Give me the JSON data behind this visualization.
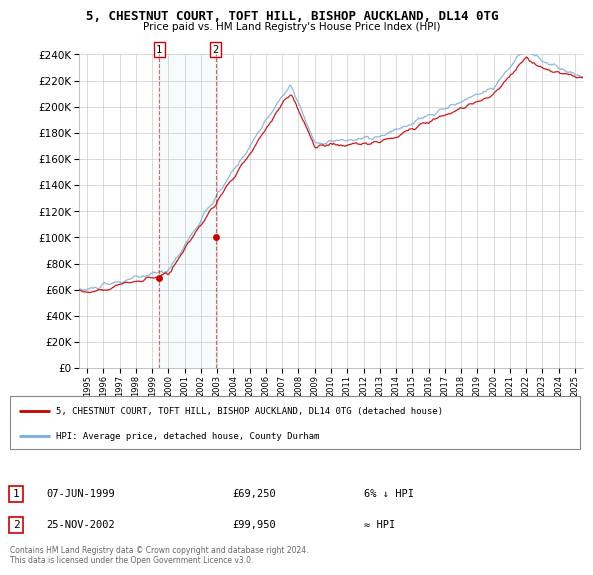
{
  "title": "5, CHESTNUT COURT, TOFT HILL, BISHOP AUCKLAND, DL14 0TG",
  "subtitle": "Price paid vs. HM Land Registry's House Price Index (HPI)",
  "legend_line1": "5, CHESTNUT COURT, TOFT HILL, BISHOP AUCKLAND, DL14 0TG (detached house)",
  "legend_line2": "HPI: Average price, detached house, County Durham",
  "annotation1_date": "07-JUN-1999",
  "annotation1_price": "£69,250",
  "annotation1_hpi": "6% ↓ HPI",
  "annotation2_date": "25-NOV-2002",
  "annotation2_price": "£99,950",
  "annotation2_hpi": "≈ HPI",
  "footer": "Contains HM Land Registry data © Crown copyright and database right 2024.\nThis data is licensed under the Open Government Licence v3.0.",
  "ylim": [
    0,
    240000
  ],
  "yticks": [
    0,
    20000,
    40000,
    60000,
    80000,
    100000,
    120000,
    140000,
    160000,
    180000,
    200000,
    220000,
    240000
  ],
  "sale1_x": 1999.44,
  "sale1_y": 69250,
  "sale2_x": 2002.9,
  "sale2_y": 99950,
  "hpi_color": "#7aaddc",
  "price_color": "#cc0000",
  "vline_color": "#cc0000",
  "xlim_left": 1994.5,
  "xlim_right": 2025.5,
  "xtick_years": [
    1995,
    1996,
    1997,
    1998,
    1999,
    2000,
    2001,
    2002,
    2003,
    2004,
    2005,
    2006,
    2007,
    2008,
    2009,
    2010,
    2011,
    2012,
    2013,
    2014,
    2015,
    2016,
    2017,
    2018,
    2019,
    2020,
    2021,
    2022,
    2023,
    2024,
    2025
  ]
}
